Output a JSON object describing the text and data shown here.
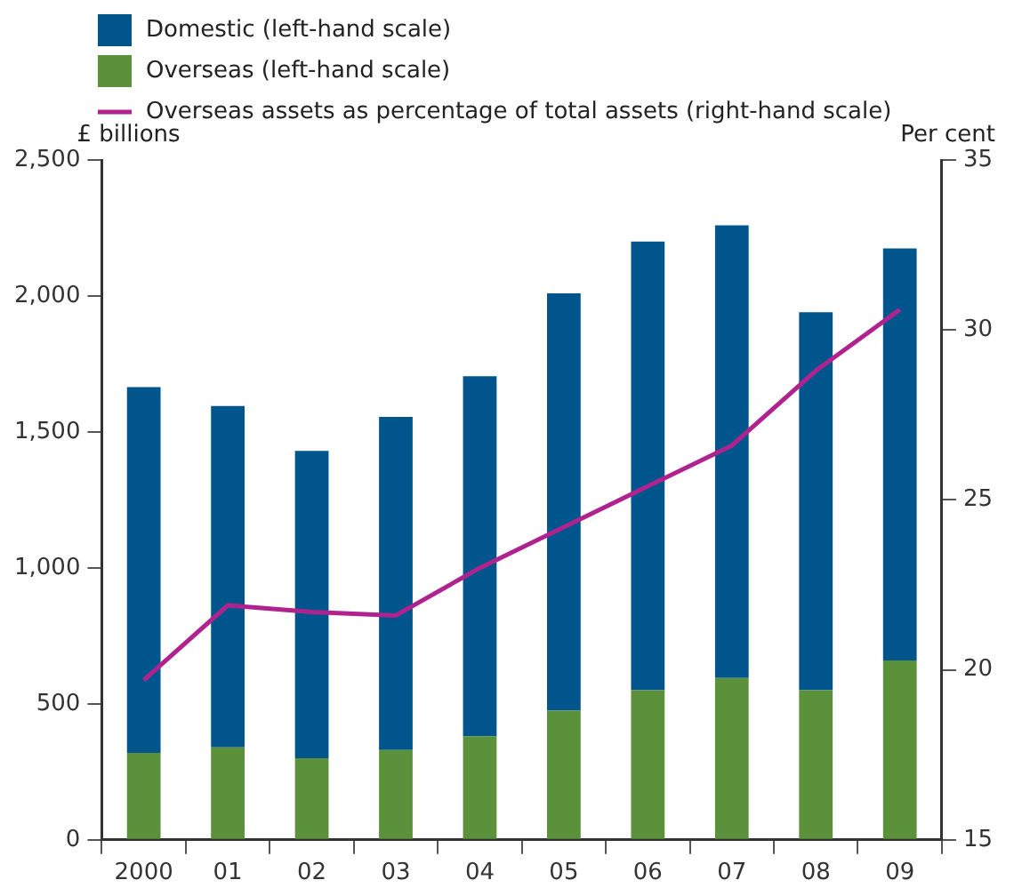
{
  "chart_data": {
    "type": "bar",
    "stacked": true,
    "categories": [
      "2000",
      "01",
      "02",
      "03",
      "04",
      "05",
      "06",
      "07",
      "08",
      "09"
    ],
    "series": [
      {
        "name": "Overseas (left-hand scale)",
        "color": "#5b913b",
        "values": [
          320,
          340,
          300,
          330,
          380,
          475,
          550,
          595,
          550,
          660
        ]
      },
      {
        "name": "Domestic (left-hand scale)",
        "color": "#00568c",
        "values": [
          1345,
          1255,
          1130,
          1225,
          1325,
          1535,
          1650,
          1665,
          1390,
          1515
        ]
      },
      {
        "name": "Overseas assets as percentage of total assets (right-hand scale)",
        "type": "line",
        "axis": "y2",
        "color": "#b0238f",
        "values": [
          19.7,
          21.9,
          21.7,
          21.6,
          23.0,
          24.2,
          25.4,
          26.6,
          28.8,
          30.6
        ]
      }
    ],
    "ylabel": "£ billions",
    "y2label": "Per cent",
    "ylim": [
      0,
      2500
    ],
    "yticks": [
      0,
      {
        "value": 500,
        "label": "500"
      },
      {
        "value": 1000,
        "label": "1,000"
      },
      {
        "value": 1500,
        "label": "1,500"
      },
      {
        "value": 2000,
        "label": "2,000"
      },
      {
        "value": 2500,
        "label": "2,500"
      }
    ],
    "y2lim": [
      15,
      35
    ],
    "y2ticks": [
      15,
      20,
      25,
      30,
      35
    ],
    "grid": false,
    "legend": "top left",
    "marker": "none",
    "line_style": "solid"
  }
}
